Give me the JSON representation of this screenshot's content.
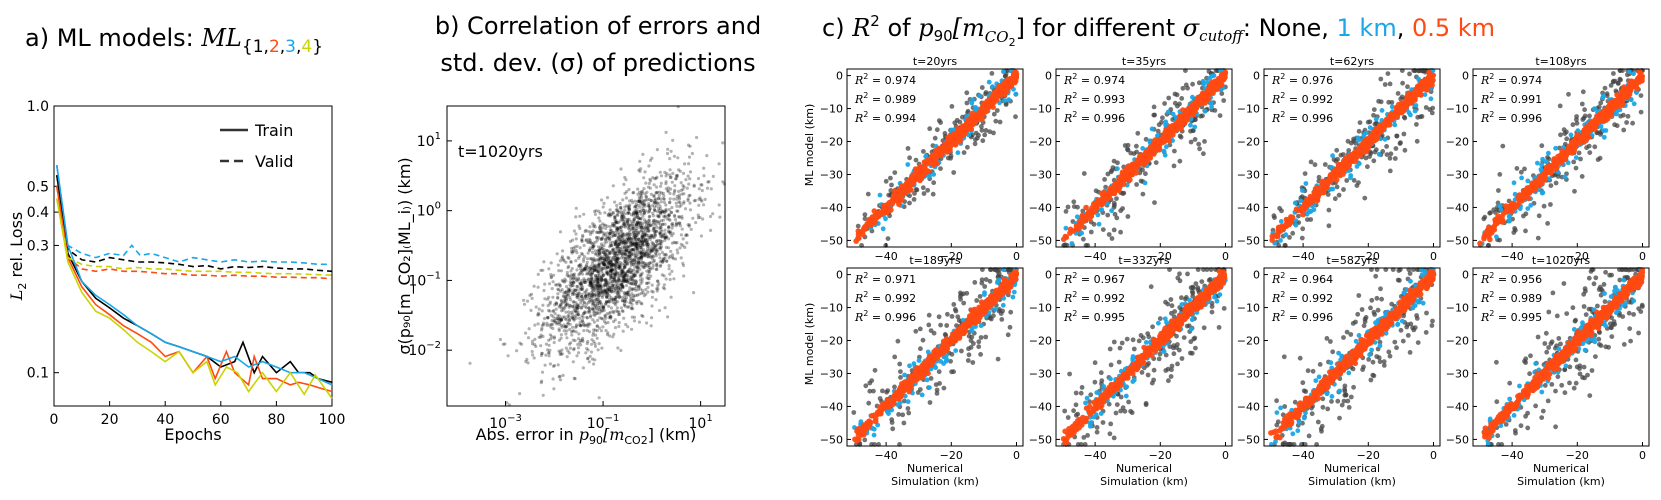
{
  "chart_data": [
    {
      "id": "a",
      "type": "line",
      "title_prefix": "a)  ML models: ",
      "title_math": "ML",
      "title_sub": [
        "1",
        "2",
        "3",
        "4"
      ],
      "xlabel": "Epochs",
      "ylabel_main": "L",
      "ylabel_sub": "2",
      "ylabel_rest": " rel. Loss",
      "xscale": "linear",
      "yscale": "log",
      "xlim": [
        0,
        100
      ],
      "ylim": [
        0.075,
        1.0
      ],
      "xticks": [
        0,
        20,
        40,
        60,
        80,
        100
      ],
      "xtick_labels": [
        "0",
        "20",
        "40",
        "60",
        "80",
        "100"
      ],
      "yticks": [
        0.1,
        0.3,
        0.4,
        0.5,
        1.0
      ],
      "ytick_labels": [
        "0.1",
        "0.3",
        "0.4",
        "0.5",
        "1.0"
      ],
      "legend": [
        {
          "label": "Train",
          "dash": "solid"
        },
        {
          "label": "Valid",
          "dash": "dashed"
        }
      ],
      "series": [
        {
          "name": "ML1",
          "color": "#000000",
          "train": {
            "x": [
              1,
              5,
              10,
              15,
              20,
              25,
              30,
              35,
              40,
              45,
              50,
              55,
              60,
              65,
              68,
              72,
              75,
              80,
              85,
              88,
              92,
              95,
              100
            ],
            "y": [
              0.55,
              0.28,
              0.22,
              0.19,
              0.175,
              0.16,
              0.15,
              0.14,
              0.13,
              0.125,
              0.12,
              0.115,
              0.105,
              0.11,
              0.13,
              0.1,
              0.115,
              0.1,
              0.11,
              0.1,
              0.1,
              0.095,
              0.092
            ]
          },
          "valid": {
            "x": [
              1,
              5,
              10,
              15,
              20,
              25,
              30,
              35,
              40,
              45,
              50,
              55,
              60,
              65,
              70,
              75,
              80,
              85,
              90,
              95,
              100
            ],
            "y": [
              0.55,
              0.29,
              0.265,
              0.26,
              0.27,
              0.265,
              0.26,
              0.26,
              0.258,
              0.255,
              0.25,
              0.252,
              0.245,
              0.25,
              0.248,
              0.25,
              0.247,
              0.245,
              0.245,
              0.242,
              0.24
            ]
          }
        },
        {
          "name": "ML2",
          "color": "#ff4a12",
          "train": {
            "x": [
              1,
              5,
              10,
              15,
              20,
              25,
              30,
              35,
              40,
              45,
              50,
              55,
              58,
              62,
              65,
              70,
              72,
              75,
              80,
              85,
              88,
              92,
              95,
              100
            ],
            "y": [
              0.5,
              0.27,
              0.21,
              0.18,
              0.165,
              0.15,
              0.14,
              0.13,
              0.115,
              0.12,
              0.1,
              0.115,
              0.095,
              0.12,
              0.1,
              0.09,
              0.115,
              0.095,
              0.095,
              0.09,
              0.092,
              0.09,
              0.088,
              0.085
            ]
          },
          "valid": {
            "x": [
              1,
              5,
              10,
              15,
              20,
              25,
              30,
              35,
              40,
              45,
              50,
              55,
              60,
              65,
              70,
              75,
              80,
              85,
              90,
              95,
              100
            ],
            "y": [
              0.5,
              0.27,
              0.245,
              0.24,
              0.245,
              0.24,
              0.24,
              0.238,
              0.235,
              0.235,
              0.232,
              0.232,
              0.23,
              0.232,
              0.23,
              0.23,
              0.228,
              0.228,
              0.227,
              0.227,
              0.225
            ]
          }
        },
        {
          "name": "ML3",
          "color": "#1aa6e8",
          "train": {
            "x": [
              1,
              5,
              10,
              15,
              20,
              25,
              30,
              35,
              40,
              45,
              50,
              55,
              60,
              65,
              70,
              75,
              80,
              85,
              90,
              95,
              100
            ],
            "y": [
              0.6,
              0.3,
              0.22,
              0.195,
              0.18,
              0.165,
              0.15,
              0.14,
              0.13,
              0.125,
              0.12,
              0.115,
              0.11,
              0.115,
              0.105,
              0.11,
              0.105,
              0.1,
              0.1,
              0.095,
              0.09
            ]
          },
          "valid": {
            "x": [
              1,
              5,
              10,
              15,
              20,
              25,
              28,
              31,
              35,
              40,
              45,
              50,
              55,
              60,
              65,
              70,
              75,
              80,
              85,
              90,
              95,
              100
            ],
            "y": [
              0.6,
              0.3,
              0.28,
              0.27,
              0.28,
              0.275,
              0.3,
              0.275,
              0.28,
              0.27,
              0.26,
              0.27,
              0.265,
              0.26,
              0.265,
              0.26,
              0.262,
              0.26,
              0.26,
              0.258,
              0.255,
              0.255
            ]
          }
        },
        {
          "name": "ML4",
          "color": "#c9d400",
          "train": {
            "x": [
              1,
              5,
              10,
              15,
              20,
              25,
              30,
              35,
              40,
              45,
              50,
              55,
              58,
              62,
              66,
              70,
              75,
              80,
              85,
              90,
              94,
              100
            ],
            "y": [
              0.45,
              0.26,
              0.2,
              0.17,
              0.16,
              0.145,
              0.13,
              0.12,
              0.11,
              0.12,
              0.1,
              0.11,
              0.09,
              0.105,
              0.1,
              0.085,
              0.1,
              0.085,
              0.1,
              0.083,
              0.098,
              0.08
            ]
          },
          "valid": {
            "x": [
              1,
              5,
              10,
              15,
              20,
              25,
              30,
              35,
              40,
              45,
              50,
              55,
              60,
              65,
              70,
              75,
              80,
              85,
              90,
              95,
              100
            ],
            "y": [
              0.45,
              0.27,
              0.255,
              0.25,
              0.25,
              0.245,
              0.248,
              0.245,
              0.245,
              0.242,
              0.24,
              0.24,
              0.24,
              0.238,
              0.238,
              0.236,
              0.235,
              0.235,
              0.234,
              0.233,
              0.232
            ]
          }
        }
      ]
    },
    {
      "id": "b",
      "type": "scatter",
      "title_line1": "b)  Correlation of errors and",
      "title_line2": "std. dev. (σ) of predictions",
      "annotation": "t=1020yrs",
      "xlabel_prefix": "Abs. error in ",
      "xlabel_p": "p",
      "xlabel_p_sub": "90",
      "xlabel_m": "[m",
      "xlabel_m_sub": "CO2",
      "xlabel_suffix": "] (km)",
      "ylabel": "σ(p₉₀[m_CO₂]₍ML_i₎) (km)",
      "xscale": "log",
      "yscale": "log",
      "xlim_log10": [
        -4.2,
        1.5
      ],
      "ylim_log10": [
        -2.8,
        1.5
      ],
      "xticks_log10": [
        -3,
        -1,
        1
      ],
      "xtick_base": "10",
      "xtick_exps": [
        "−3",
        "−1",
        "1"
      ],
      "yticks_log10": [
        -2,
        -1,
        0,
        1
      ],
      "ytick_base": "10",
      "ytick_exps": [
        "−2",
        "−1",
        "0",
        "1"
      ],
      "point_count": 2500,
      "point_color": "#000000",
      "point_alpha": 0.3,
      "distribution": {
        "log10_x_mean": -0.7,
        "log10_x_sd": 0.75,
        "slope": 0.55,
        "intercept": -0.35,
        "scatter_sd": 0.45
      }
    },
    {
      "id": "c",
      "type": "scatter",
      "title_prefix": "c)  ",
      "title_r2": "R",
      "title_r2_sup": "2",
      "title_of": " of ",
      "title_p": "p",
      "title_p_sub": "90",
      "title_m": "[m",
      "title_m_sub": "CO",
      "title_m_sub2": "2",
      "title_m_end": "]",
      "title_for": " for different ",
      "title_sigma": "σ",
      "title_sigma_sub": "cutoff",
      "title_colon": ": None, ",
      "title_opt1": "1 km",
      "title_comma": ", ",
      "title_opt2": "0.5 km",
      "xlabel_line1": "Numerical",
      "xlabel_line2": "Simulation (km)",
      "ylabel": "ML model (km)",
      "xlim": [
        -52,
        2
      ],
      "ylim": [
        -52,
        2
      ],
      "xticks": [
        -40,
        -20,
        0
      ],
      "xtick_labels": [
        "−40",
        "−20",
        "0"
      ],
      "yticks": [
        0,
        -10,
        -20,
        -30,
        -40,
        -50
      ],
      "ytick_labels": [
        "0",
        "−10",
        "−20",
        "−30",
        "−40",
        "−50"
      ],
      "series_colors": {
        "None": "#444444",
        "1 km": "#1aa6e8",
        "0.5 km": "#ff4a12"
      },
      "r2_label": "R",
      "r2_sup": "2",
      "panels": [
        {
          "title": "t=20yrs",
          "r2": [
            "= 0.974",
            "= 0.989",
            "= 0.994"
          ]
        },
        {
          "title": "t=35yrs",
          "r2": [
            "= 0.974",
            "= 0.993",
            "= 0.996"
          ]
        },
        {
          "title": "t=62yrs",
          "r2": [
            "= 0.976",
            "= 0.992",
            "= 0.996"
          ]
        },
        {
          "title": "t=108yrs",
          "r2": [
            "= 0.974",
            "= 0.991",
            "= 0.996"
          ]
        },
        {
          "title": "t=189yrs",
          "r2": [
            "= 0.971",
            "= 0.992",
            "= 0.996"
          ]
        },
        {
          "title": "t=332yrs",
          "r2": [
            "= 0.967",
            "= 0.992",
            "= 0.995"
          ]
        },
        {
          "title": "t=582yrs",
          "r2": [
            "= 0.964",
            "= 0.992",
            "= 0.996"
          ]
        },
        {
          "title": "t=1020yrs",
          "r2": [
            "= 0.956",
            "= 0.989",
            "= 0.995"
          ]
        }
      ]
    }
  ]
}
